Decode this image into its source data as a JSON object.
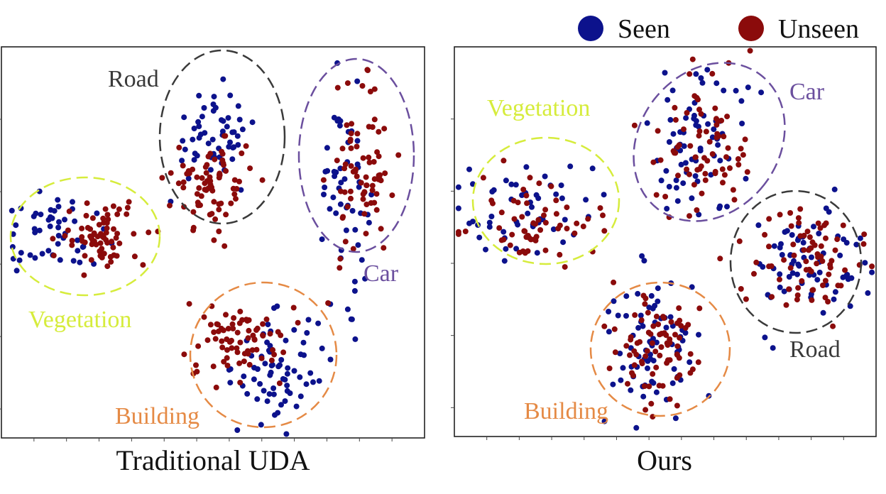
{
  "legend": {
    "placement": "top-right",
    "entries": [
      {
        "label": "Seen",
        "color": "#0c128c"
      },
      {
        "label": "Unseen",
        "color": "#8b0b0b"
      }
    ]
  },
  "chart_data": [
    {
      "type": "scatter",
      "title": "Traditional UDA",
      "xlim": [
        0,
        100
      ],
      "ylim": [
        0,
        100
      ],
      "grid": false,
      "clusters": [
        {
          "label": "Road",
          "color": "#3a3a3a",
          "seen": {
            "cx": 50,
            "cy": 77,
            "sx": 5,
            "sy": 6,
            "n": 55
          },
          "unseen": {
            "cx": 50,
            "cy": 65,
            "sx": 5,
            "sy": 6,
            "n": 75
          }
        },
        {
          "label": "Car",
          "color": "#6b4f9e",
          "seen": {
            "cx": 81,
            "cy": 63,
            "sx": 3,
            "sy": 12,
            "n": 55
          },
          "unseen": {
            "cx": 85,
            "cy": 66,
            "sx": 4,
            "sy": 11,
            "n": 75
          }
        },
        {
          "label": "Vegetation",
          "color": "#d6ec3c",
          "seen": {
            "cx": 13,
            "cy": 52,
            "sx": 6,
            "sy": 5,
            "n": 50
          },
          "unseen": {
            "cx": 24,
            "cy": 52,
            "sx": 5,
            "sy": 4,
            "n": 70
          }
        },
        {
          "label": "Building",
          "color": "#e58a45",
          "seen": {
            "cx": 65,
            "cy": 18,
            "sx": 5,
            "sy": 7,
            "n": 70
          },
          "unseen": {
            "cx": 56,
            "cy": 25,
            "sx": 6,
            "sy": 5,
            "n": 75
          }
        }
      ]
    },
    {
      "type": "scatter",
      "title": "Ours",
      "xlim": [
        0,
        100
      ],
      "ylim": [
        0,
        100
      ],
      "grid": false,
      "clusters": [
        {
          "label": "Vegetation",
          "color": "#d6ec3c",
          "seen": {
            "cx": 17,
            "cy": 59,
            "sx": 8,
            "sy": 6,
            "n": 55
          },
          "unseen": {
            "cx": 19,
            "cy": 55,
            "sx": 7,
            "sy": 5,
            "n": 60
          }
        },
        {
          "label": "Car",
          "color": "#6b4f9e",
          "seen": {
            "cx": 58,
            "cy": 75,
            "sx": 6,
            "sy": 10,
            "n": 70
          },
          "unseen": {
            "cx": 58,
            "cy": 76,
            "sx": 6,
            "sy": 10,
            "n": 75
          }
        },
        {
          "label": "Road",
          "color": "#3a3a3a",
          "seen": {
            "cx": 84,
            "cy": 45,
            "sx": 7,
            "sy": 8,
            "n": 70
          },
          "unseen": {
            "cx": 84,
            "cy": 46,
            "sx": 6,
            "sy": 7,
            "n": 75
          }
        },
        {
          "label": "Building",
          "color": "#e58a45",
          "seen": {
            "cx": 48,
            "cy": 23,
            "sx": 6,
            "sy": 9,
            "n": 75
          },
          "unseen": {
            "cx": 48,
            "cy": 23,
            "sx": 5,
            "sy": 8,
            "n": 80
          }
        }
      ]
    }
  ]
}
